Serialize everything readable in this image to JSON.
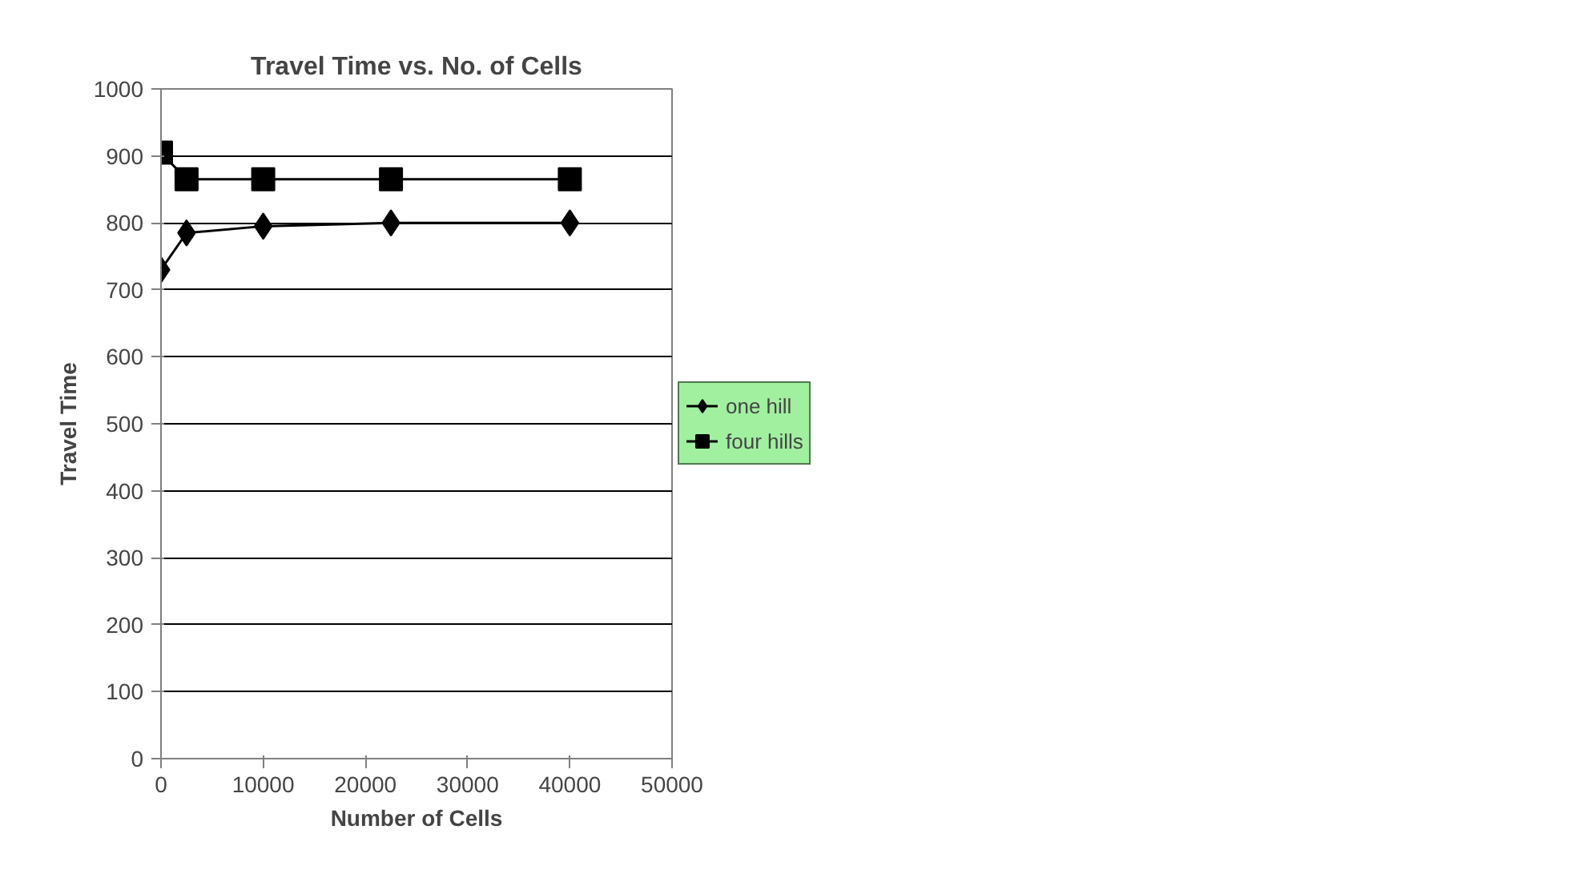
{
  "chart_data": {
    "type": "line",
    "title": "Travel Time vs. No. of Cells",
    "xlabel": "Number of Cells",
    "ylabel": "Travel Time",
    "x": [
      0,
      2500,
      10000,
      22500,
      40000
    ],
    "series": [
      {
        "name": "one hill",
        "color": "#000000",
        "marker": "diamond",
        "values": [
          730,
          785,
          795,
          800,
          800
        ]
      },
      {
        "name": "four hills",
        "color": "#000000",
        "marker": "square",
        "values": [
          905,
          865,
          865,
          865,
          865
        ]
      }
    ],
    "xlim": [
      0,
      50000
    ],
    "xticks": [
      0,
      10000,
      20000,
      30000,
      40000,
      50000
    ],
    "ylim": [
      0,
      1000
    ],
    "yticks": [
      0,
      100,
      200,
      300,
      400,
      500,
      600,
      700,
      800,
      900,
      1000
    ],
    "grid": "y",
    "legend": "right",
    "line_style": "solid"
  }
}
